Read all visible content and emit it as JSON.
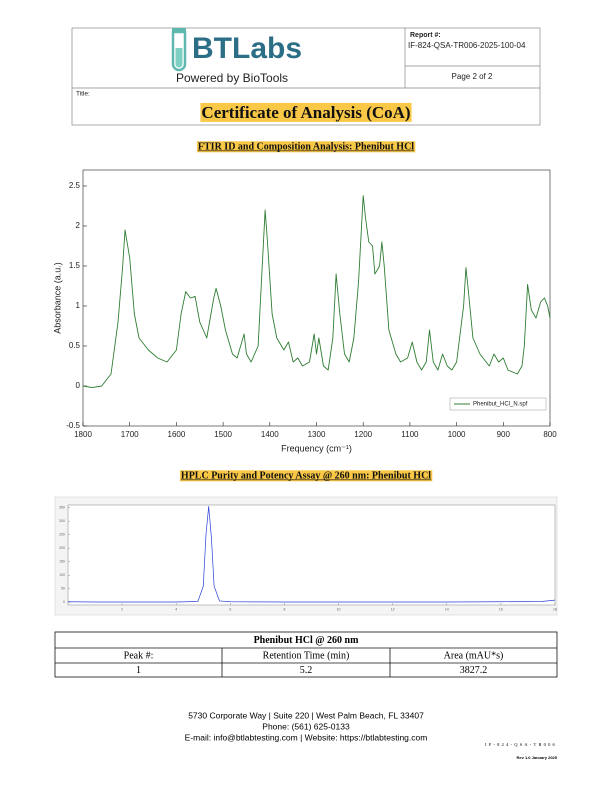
{
  "header": {
    "logo_text": "BTLabs",
    "tagline": "Powered by BioTools",
    "report_label": "Report #:",
    "report_number": "IF-824-QSA-TR006-2025-100-04",
    "page": "Page 2 of 2",
    "title_label": "Title:",
    "title": "Certificate of Analysis (CoA)"
  },
  "sections": [
    {
      "heading": "FTIR ID and Composition Analysis: Phenibut HCl"
    },
    {
      "heading": "HPLC Purity and Potency Assay @ 260 nm: Phenibut HCl"
    }
  ],
  "chart_data": [
    {
      "type": "line",
      "xlabel": "Frequency (cm⁻¹)",
      "ylabel": "Absorbance (a.u.)",
      "xlim": [
        1800,
        800
      ],
      "ylim": [
        -0.5,
        2.7
      ],
      "xticks": [
        1800,
        1700,
        1600,
        1500,
        1400,
        1300,
        1200,
        1100,
        1000,
        900,
        800
      ],
      "yticks": [
        -0.5,
        0,
        0.5,
        1,
        1.5,
        2,
        2.5
      ],
      "legend": "lower right",
      "x": [
        1800,
        1780,
        1760,
        1740,
        1725,
        1715,
        1710,
        1700,
        1690,
        1680,
        1660,
        1640,
        1620,
        1600,
        1590,
        1580,
        1570,
        1560,
        1550,
        1535,
        1520,
        1515,
        1505,
        1495,
        1480,
        1470,
        1455,
        1450,
        1440,
        1425,
        1410,
        1405,
        1395,
        1385,
        1370,
        1360,
        1350,
        1340,
        1330,
        1315,
        1305,
        1300,
        1295,
        1285,
        1275,
        1265,
        1258,
        1250,
        1240,
        1230,
        1220,
        1210,
        1200,
        1195,
        1188,
        1180,
        1175,
        1165,
        1160,
        1155,
        1145,
        1130,
        1120,
        1105,
        1095,
        1085,
        1075,
        1065,
        1058,
        1050,
        1040,
        1030,
        1020,
        1010,
        1000,
        985,
        980,
        975,
        965,
        950,
        930,
        920,
        910,
        900,
        890,
        870,
        860,
        855,
        848,
        840,
        830,
        820,
        812,
        805,
        800
      ],
      "series": [
        {
          "name": "Phenibut_HCl_N.spf",
          "color": "#2f7d32",
          "values": [
            0,
            -0.02,
            0,
            0.15,
            0.8,
            1.5,
            1.95,
            1.6,
            0.9,
            0.6,
            0.45,
            0.35,
            0.3,
            0.45,
            0.9,
            1.18,
            1.1,
            1.12,
            0.8,
            0.6,
            1.1,
            1.22,
            1.0,
            0.7,
            0.4,
            0.35,
            0.65,
            0.4,
            0.3,
            0.5,
            2.2,
            1.8,
            0.9,
            0.6,
            0.45,
            0.55,
            0.3,
            0.35,
            0.25,
            0.3,
            0.65,
            0.4,
            0.6,
            0.25,
            0.2,
            0.6,
            1.4,
            0.9,
            0.4,
            0.3,
            0.6,
            1.3,
            2.38,
            2.1,
            1.8,
            1.75,
            1.4,
            1.5,
            1.8,
            1.5,
            0.7,
            0.4,
            0.3,
            0.35,
            0.55,
            0.3,
            0.2,
            0.3,
            0.7,
            0.3,
            0.2,
            0.4,
            0.25,
            0.2,
            0.3,
            1.0,
            1.48,
            1.2,
            0.6,
            0.4,
            0.25,
            0.4,
            0.3,
            0.35,
            0.2,
            0.15,
            0.25,
            0.5,
            1.27,
            0.95,
            0.85,
            1.05,
            1.1,
            1.0,
            0.85
          ]
        }
      ]
    },
    {
      "type": "line",
      "xlim": [
        0,
        18
      ],
      "ylim": [
        -10,
        360
      ],
      "xticks": [
        2,
        4,
        6,
        8,
        10,
        12,
        14,
        16,
        18
      ],
      "yticks": [
        0,
        50,
        100,
        150,
        200,
        250,
        300,
        350
      ],
      "x": [
        0,
        1,
        2,
        3,
        4,
        4.8,
        5.0,
        5.1,
        5.2,
        5.3,
        5.4,
        5.6,
        6,
        8,
        10,
        12,
        14,
        16,
        17.5,
        18
      ],
      "series": [
        {
          "name": null,
          "color": "#2b3fd6",
          "values": [
            2,
            1,
            1,
            1,
            1,
            3,
            60,
            250,
            355,
            240,
            60,
            5,
            2,
            1,
            1,
            1,
            1,
            2,
            3,
            8
          ]
        }
      ]
    }
  ],
  "table": {
    "title": "Phenibut HCl @ 260 nm",
    "columns": [
      "Peak #:",
      "Retention Time (min)",
      "Area (mAU*s)"
    ],
    "rows": [
      [
        "1",
        "5.2",
        "3827.2"
      ]
    ]
  },
  "footer": {
    "lines": [
      "5730 Corporate Way | Suite 220 | West Palm Beach, FL 33407",
      "Phone: (561) 625-0133",
      "E-mail: info@btlabtesting.com | Website: https://btlabtesting.com"
    ],
    "doc_code": "IF-824-QSA-TR006",
    "revision": "Rev 1.0 January 2025"
  }
}
